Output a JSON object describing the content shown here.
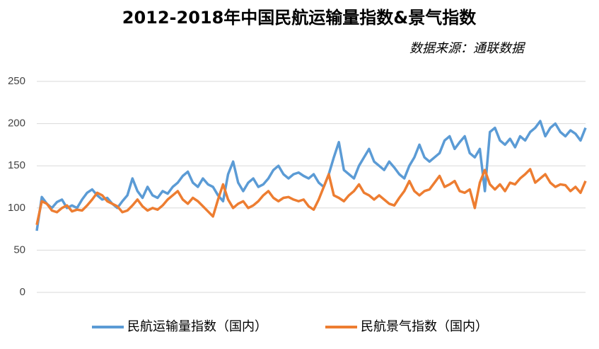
{
  "chart_data": {
    "type": "line",
    "title": "2012-2018年中国民航运输量指数&景气指数",
    "subtitle": "数据来源：通联数据",
    "categories": [
      null,
      null,
      null,
      null,
      null,
      null,
      null,
      null,
      null,
      null,
      null,
      null,
      null,
      null,
      null,
      null,
      null,
      null,
      null,
      null,
      null,
      null,
      null,
      null,
      null,
      null,
      null,
      null,
      null,
      null,
      null,
      null,
      null,
      null,
      null,
      null,
      null,
      null,
      null,
      null,
      null,
      null,
      null,
      null,
      null,
      null,
      null,
      null,
      null,
      null,
      null,
      null,
      null,
      null,
      null,
      null,
      null,
      null,
      null,
      null,
      null,
      null,
      null,
      null,
      null,
      null,
      null,
      null,
      null,
      null,
      null,
      null,
      null,
      null,
      null,
      null,
      null,
      null,
      null,
      null,
      null,
      null,
      null,
      null,
      null,
      null,
      null,
      null,
      null,
      null,
      null,
      null,
      null,
      null,
      null,
      null,
      null,
      null,
      null,
      null,
      null,
      null,
      null,
      null,
      null,
      null,
      null,
      null,
      null,
      null
    ],
    "series": [
      {
        "name": "民航运输量指数（国内）",
        "color": "#5b9bd5",
        "values": [
          73,
          113,
          105,
          100,
          107,
          110,
          100,
          103,
          100,
          110,
          118,
          122,
          115,
          110,
          112,
          105,
          100,
          108,
          115,
          135,
          120,
          112,
          125,
          115,
          112,
          120,
          117,
          125,
          130,
          138,
          143,
          130,
          125,
          135,
          128,
          125,
          115,
          108,
          140,
          155,
          130,
          120,
          130,
          135,
          125,
          128,
          135,
          145,
          150,
          140,
          135,
          140,
          142,
          138,
          135,
          140,
          130,
          125,
          140,
          160,
          178,
          145,
          140,
          135,
          150,
          160,
          170,
          155,
          150,
          145,
          155,
          148,
          140,
          135,
          150,
          160,
          175,
          160,
          155,
          160,
          165,
          180,
          185,
          170,
          178,
          185,
          165,
          160,
          170,
          120,
          190,
          195,
          180,
          175,
          182,
          172,
          185,
          180,
          190,
          195,
          203,
          185,
          195,
          200,
          190,
          185,
          192,
          188,
          180,
          195
        ]
      },
      {
        "name": "民航景气指数（国内）",
        "color": "#ed7d31",
        "values": [
          80,
          108,
          105,
          97,
          95,
          100,
          103,
          96,
          98,
          97,
          103,
          110,
          118,
          115,
          108,
          105,
          102,
          95,
          97,
          103,
          110,
          102,
          97,
          100,
          98,
          103,
          110,
          115,
          120,
          110,
          105,
          112,
          108,
          102,
          96,
          90,
          110,
          128,
          110,
          100,
          105,
          108,
          100,
          103,
          108,
          115,
          120,
          112,
          108,
          112,
          113,
          110,
          108,
          110,
          102,
          98,
          110,
          125,
          140,
          115,
          112,
          108,
          115,
          120,
          128,
          118,
          115,
          110,
          115,
          110,
          105,
          103,
          112,
          120,
          132,
          120,
          115,
          120,
          122,
          130,
          138,
          125,
          128,
          132,
          120,
          118,
          122,
          100,
          130,
          145,
          128,
          122,
          128,
          120,
          130,
          128,
          135,
          140,
          146,
          130,
          135,
          140,
          130,
          125,
          128,
          127,
          120,
          125,
          118,
          132
        ]
      }
    ],
    "ylim": [
      0,
      250
    ],
    "yticks": [
      0,
      50,
      100,
      150,
      200,
      250
    ],
    "grid": true,
    "legend": "bottom"
  }
}
